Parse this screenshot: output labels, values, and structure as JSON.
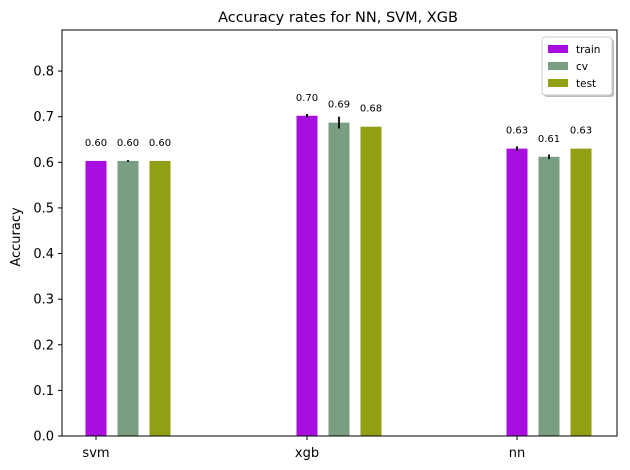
{
  "chart_data": {
    "type": "bar",
    "title": "Accuracy rates for NN, SVM, XGB",
    "xlabel": "",
    "ylabel": "Accuracy",
    "ylim": [
      0,
      0.89
    ],
    "yticks": [
      "0.0",
      "0.1",
      "0.2",
      "0.3",
      "0.4",
      "0.5",
      "0.6",
      "0.7",
      "0.8"
    ],
    "categories": [
      "svm",
      "xgb",
      "nn"
    ],
    "legend_position": "top-right",
    "grid": false,
    "series": [
      {
        "name": "train",
        "color": "#a90ee0",
        "values": [
          0.603,
          0.702,
          0.63
        ],
        "errors": [
          0.0,
          0.004,
          0.005
        ],
        "labels": [
          "0.60",
          "0.70",
          "0.63"
        ]
      },
      {
        "name": "cv",
        "color": "#7a9e82",
        "values": [
          0.603,
          0.687,
          0.612
        ],
        "errors": [
          0.002,
          0.013,
          0.005
        ],
        "labels": [
          "0.60",
          "0.69",
          "0.61"
        ]
      },
      {
        "name": "test",
        "color": "#929e14",
        "values": [
          0.603,
          0.678,
          0.63
        ],
        "errors": [
          0.0,
          0.0,
          0.0
        ],
        "labels": [
          "0.60",
          "0.68",
          "0.63"
        ]
      }
    ]
  }
}
